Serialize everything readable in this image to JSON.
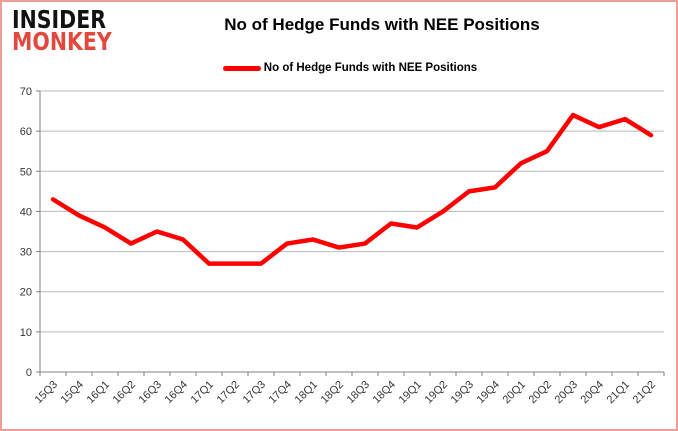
{
  "branding": {
    "line1": "INSIDER",
    "line2": "MONKEY"
  },
  "header": {
    "title": "No of Hedge Funds with NEE Positions"
  },
  "legend": {
    "label": "No of Hedge Funds with NEE Positions"
  },
  "colors": {
    "series_red": "#ff0000",
    "logo_black": "#121212",
    "logo_red": "#e2483d",
    "frame_border": "#ee9d97",
    "gridline": "#b9b9b9",
    "axis": "#808080"
  },
  "chart_data": {
    "type": "line",
    "title": "No of Hedge Funds with NEE Positions",
    "categories": [
      "15Q3",
      "15Q4",
      "16Q1",
      "16Q2",
      "16Q3",
      "16Q4",
      "17Q1",
      "17Q2",
      "17Q3",
      "17Q4",
      "18Q1",
      "18Q2",
      "18Q3",
      "18Q4",
      "19Q1",
      "19Q2",
      "19Q3",
      "19Q4",
      "20Q1",
      "20Q2",
      "20Q3",
      "20Q4",
      "21Q1",
      "21Q2"
    ],
    "series": [
      {
        "name": "No of Hedge Funds with NEE Positions",
        "color": "#ff0000",
        "values": [
          43,
          39,
          36,
          32,
          35,
          33,
          27,
          27,
          27,
          32,
          33,
          31,
          32,
          37,
          36,
          40,
          45,
          46,
          52,
          55,
          64,
          61,
          63,
          59
        ]
      }
    ],
    "xlabel": "",
    "ylabel": "",
    "ylim": [
      0,
      70
    ],
    "yticks": [
      0,
      10,
      20,
      30,
      40,
      50,
      60,
      70
    ],
    "grid": "horizontal",
    "legend_position": "top",
    "gridline_color": "#b9b9b9",
    "axis_color": "#808080"
  }
}
